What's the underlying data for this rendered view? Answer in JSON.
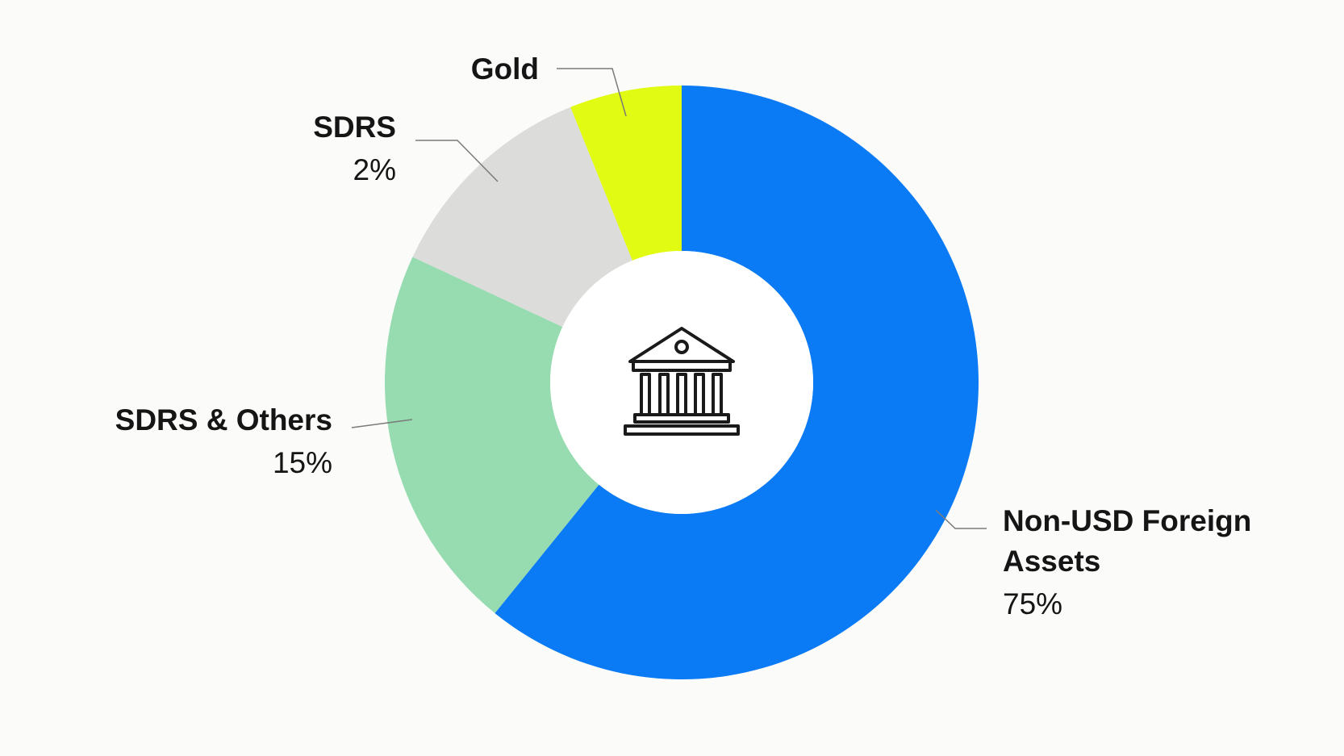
{
  "chart_data": {
    "type": "pie",
    "style": "donut",
    "title": "",
    "segments": [
      {
        "name": "Non-USD Foreign Assets",
        "name_lines": [
          "Non-USD Foreign",
          "Assets"
        ],
        "value": 75,
        "value_label": "75%",
        "color": "#0a7af5"
      },
      {
        "name": "SDRS & Others",
        "name_lines": [
          "SDRS & Others"
        ],
        "value": 15,
        "value_label": "15%",
        "color": "#96dcb0"
      },
      {
        "name": "SDRS",
        "name_lines": [
          "SDRS"
        ],
        "value": 2,
        "value_label": "2%",
        "color": "#dcdcdb"
      },
      {
        "name": "Gold",
        "name_lines": [
          "Gold"
        ],
        "value": null,
        "value_label": "",
        "color": "#e1fb12"
      }
    ],
    "center_icon": "bank-building-icon"
  }
}
